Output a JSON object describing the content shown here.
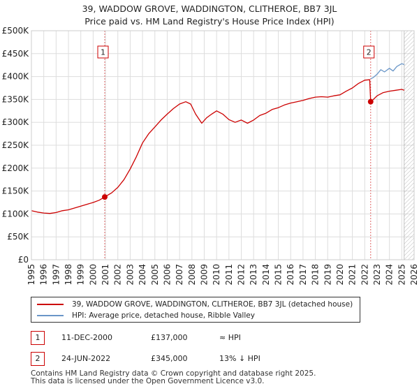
{
  "chart_data": {
    "type": "line",
    "title": "39, WADDOW GROVE, WADDINGTON, CLITHEROE, BB7 3JL",
    "subtitle": "Price paid vs. HM Land Registry's House Price Index (HPI)",
    "xlim": [
      1995,
      2026
    ],
    "ylim": [
      0,
      500000
    ],
    "x_ticks": [
      1995,
      1996,
      1997,
      1998,
      1999,
      2000,
      2001,
      2002,
      2003,
      2004,
      2005,
      2006,
      2007,
      2008,
      2009,
      2010,
      2011,
      2012,
      2013,
      2014,
      2015,
      2016,
      2017,
      2018,
      2019,
      2020,
      2021,
      2022,
      2023,
      2024,
      2025,
      2026
    ],
    "y_ticks": [
      {
        "value": 0,
        "label": "£0"
      },
      {
        "value": 50000,
        "label": "£50K"
      },
      {
        "value": 100000,
        "label": "£100K"
      },
      {
        "value": 150000,
        "label": "£150K"
      },
      {
        "value": 200000,
        "label": "£200K"
      },
      {
        "value": 250000,
        "label": "£250K"
      },
      {
        "value": 300000,
        "label": "£300K"
      },
      {
        "value": 350000,
        "label": "£350K"
      },
      {
        "value": 400000,
        "label": "£400K"
      },
      {
        "value": 450000,
        "label": "£450K"
      },
      {
        "value": 500000,
        "label": "£500K"
      }
    ],
    "series": [
      {
        "name": "39, WADDOW GROVE, WADDINGTON, CLITHEROE, BB7 3JL (detached house)",
        "color": "#cc0000",
        "x": [
          1995,
          1995.5,
          1996,
          1996.5,
          1997,
          1997.5,
          1998,
          1998.5,
          1999,
          1999.5,
          2000,
          2000.5,
          2000.94,
          2001.5,
          2002,
          2002.5,
          2003,
          2003.5,
          2004,
          2004.5,
          2005,
          2005.5,
          2006,
          2006.5,
          2007,
          2007.5,
          2007.9,
          2008.3,
          2008.8,
          2009.2,
          2009.6,
          2010,
          2010.5,
          2011,
          2011.5,
          2012,
          2012.5,
          2013,
          2013.5,
          2014,
          2014.5,
          2015,
          2015.5,
          2016,
          2016.5,
          2017,
          2017.5,
          2018,
          2018.5,
          2019,
          2019.5,
          2020,
          2020.5,
          2021,
          2021.5,
          2022,
          2022.4,
          2022.48,
          2022.7,
          2023,
          2023.5,
          2024,
          2024.5,
          2025,
          2025.2
        ],
        "values": [
          107000,
          104000,
          102000,
          101000,
          103000,
          107000,
          109000,
          113000,
          117000,
          121000,
          125000,
          130000,
          137000,
          146000,
          158000,
          175000,
          198000,
          225000,
          255000,
          275000,
          290000,
          305000,
          318000,
          330000,
          340000,
          345000,
          340000,
          318000,
          298000,
          310000,
          318000,
          325000,
          318000,
          306000,
          300000,
          305000,
          298000,
          305000,
          315000,
          320000,
          328000,
          332000,
          338000,
          342000,
          345000,
          348000,
          352000,
          355000,
          356000,
          355000,
          358000,
          360000,
          368000,
          375000,
          385000,
          392000,
          393000,
          345000,
          350000,
          358000,
          365000,
          368000,
          370000,
          372000,
          370000
        ]
      },
      {
        "name": "HPI: Average price, detached house, Ribble Valley",
        "color": "#6a96c8",
        "x": [
          2022.48,
          2022.7,
          2023,
          2023.3,
          2023.6,
          2024,
          2024.3,
          2024.6,
          2025,
          2025.2
        ],
        "values": [
          395000,
          398000,
          405000,
          415000,
          410000,
          418000,
          412000,
          422000,
          428000,
          426000
        ]
      }
    ],
    "annotations": [
      {
        "label": "1",
        "x": 2000.94,
        "value": 137000
      },
      {
        "label": "2",
        "x": 2022.48,
        "value": 345000
      }
    ],
    "future_hatch_from": 2025.2
  },
  "legend": {
    "items": [
      {
        "label": "39, WADDOW GROVE, WADDINGTON, CLITHEROE, BB7 3JL (detached house)",
        "color": "#cc0000"
      },
      {
        "label": "HPI: Average price, detached house, Ribble Valley",
        "color": "#6a96c8"
      }
    ]
  },
  "sales": [
    {
      "badge": "1",
      "date": "11-DEC-2000",
      "price": "£137,000",
      "hpi": "≈ HPI"
    },
    {
      "badge": "2",
      "date": "24-JUN-2022",
      "price": "£345,000",
      "hpi": "13% ↓ HPI"
    }
  ],
  "footer": {
    "line1": "Contains HM Land Registry data © Crown copyright and database right 2025.",
    "line2": "This data is licensed under the Open Government Licence v3.0."
  }
}
